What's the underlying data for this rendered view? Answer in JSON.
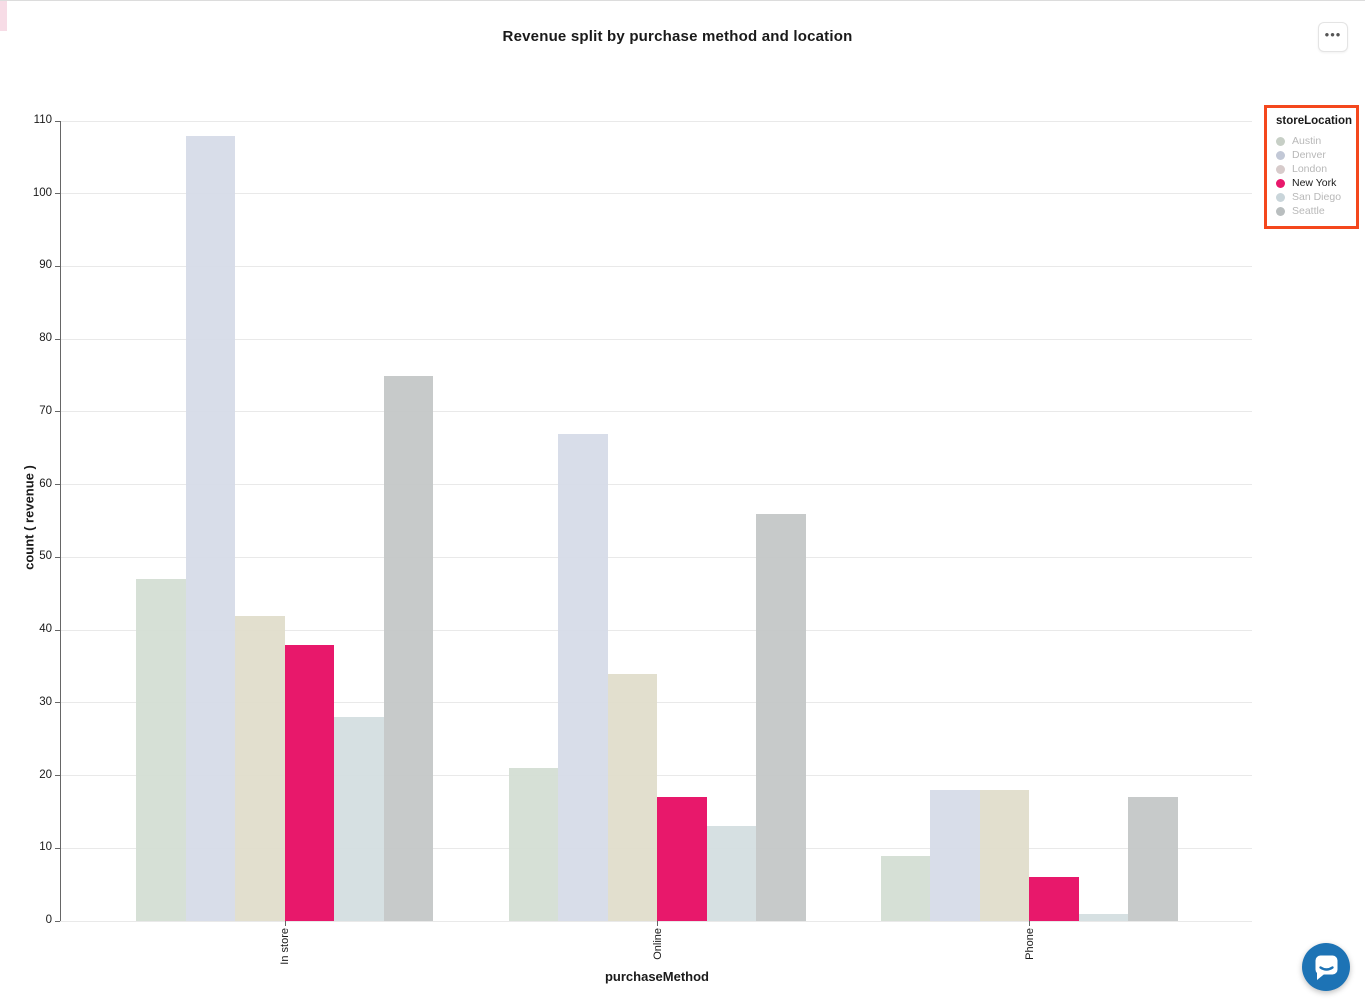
{
  "header": {
    "title": "Revenue split by purchase method and location",
    "menu_icon": "•••"
  },
  "chart_data": {
    "type": "bar",
    "title": "Revenue split by purchase method and location",
    "xlabel": "purchaseMethod",
    "ylabel": "count ( revenue )",
    "categories": [
      "In store",
      "Online",
      "Phone"
    ],
    "series": [
      {
        "name": "Austin",
        "values": [
          47,
          21,
          9
        ],
        "color": "#d3ddd2",
        "legend_color": "#c7cfc6",
        "muted": true
      },
      {
        "name": "Denver",
        "values": [
          108,
          67,
          18
        ],
        "color": "#d5dae7",
        "legend_color": "#c2c8d6",
        "muted": true
      },
      {
        "name": "London",
        "values": [
          42,
          34,
          18
        ],
        "color": "#e0dcca",
        "legend_color": "#d7cbcb",
        "muted": true
      },
      {
        "name": "New York",
        "values": [
          38,
          17,
          6
        ],
        "color": "#e8186b",
        "legend_color": "#e8186b",
        "muted": false
      },
      {
        "name": "San Diego",
        "values": [
          28,
          13,
          1
        ],
        "color": "#d3dde0",
        "legend_color": "#c9d5da",
        "muted": true
      },
      {
        "name": "Seattle",
        "values": [
          75,
          56,
          17
        ],
        "color": "#c2c6c5",
        "legend_color": "#b9bebf",
        "muted": true
      }
    ],
    "ylim": [
      0,
      110
    ],
    "ytick_step": 10,
    "grid": true,
    "legend_position": "right",
    "highlighted_series": "New York"
  },
  "legend": {
    "title": "storeLocation",
    "highlight_color": "#f4471d",
    "items": [
      "Austin",
      "Denver",
      "London",
      "New York",
      "San Diego",
      "Seattle"
    ]
  },
  "chat": {
    "color": "#1d73b5"
  }
}
